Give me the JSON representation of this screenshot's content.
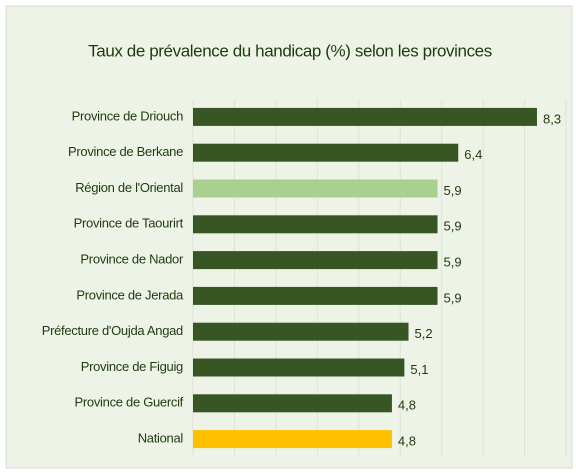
{
  "chart_data": {
    "type": "bar",
    "orientation": "horizontal",
    "title": "Taux de prévalence du handicap (%) selon les provinces",
    "categories": [
      "Province de Driouch",
      "Province de Berkane",
      "Région de l'Oriental",
      "Province de Taourirt",
      "Province de Nador",
      "Province de Jerada",
      "Préfecture d'Oujda Angad",
      "Province de Figuig",
      "Province de Guercif",
      "National"
    ],
    "values": [
      8.3,
      6.4,
      5.9,
      5.9,
      5.9,
      5.9,
      5.2,
      5.1,
      4.8,
      4.8
    ],
    "value_labels": [
      "8,3",
      "6,4",
      "5,9",
      "5,9",
      "5,9",
      "5,9",
      "5,2",
      "5,1",
      "4,8",
      "4,8"
    ],
    "colors": [
      "#375623",
      "#375623",
      "#a9d08e",
      "#375623",
      "#375623",
      "#375623",
      "#375623",
      "#375623",
      "#375623",
      "#ffc000"
    ],
    "xlim": [
      0,
      9
    ],
    "xticks": [
      0,
      1,
      2,
      3,
      4,
      5,
      6,
      7,
      8,
      9
    ],
    "grid": true
  }
}
